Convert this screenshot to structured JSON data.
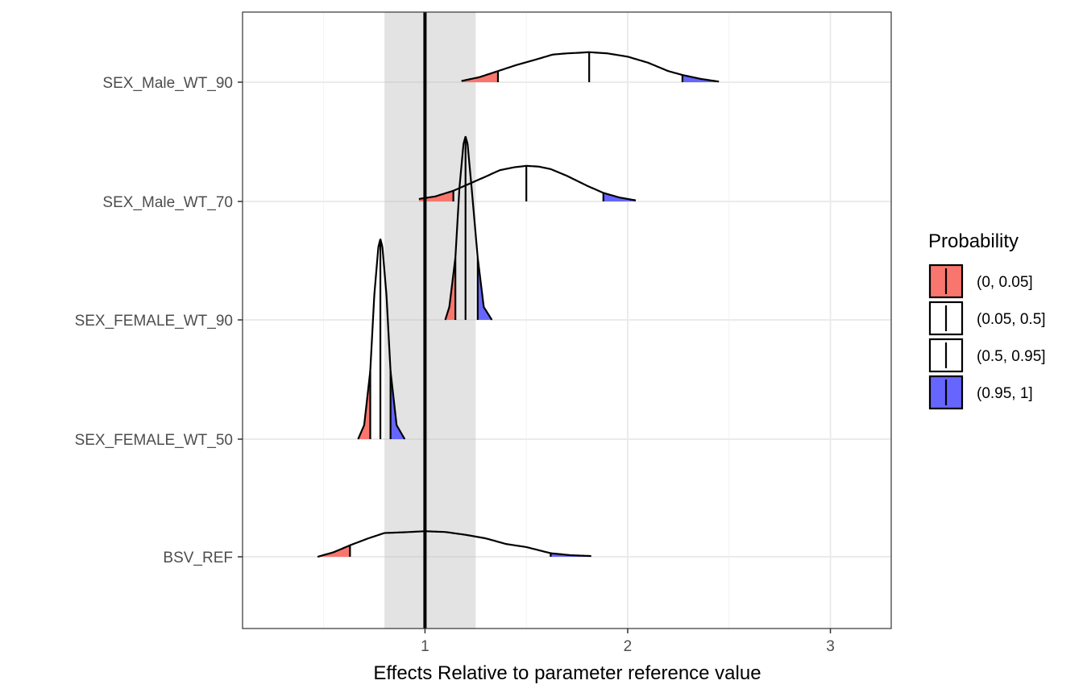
{
  "chart_data": {
    "type": "density-ridgeline",
    "xlabel": "Effects Relative to parameter reference value",
    "ylabel": "",
    "xlim": [
      0.1,
      3.3
    ],
    "x_ticks": [
      1,
      2,
      3
    ],
    "x_tick_labels": [
      "1",
      "2",
      "3"
    ],
    "reference_line": 1,
    "reference_band": [
      0.8,
      1.25
    ],
    "grid": true,
    "legend": {
      "title": "Probability",
      "position": "right",
      "entries": [
        {
          "label": "(0, 0.05]",
          "color": "#f8766d"
        },
        {
          "label": "(0.05, 0.5]",
          "color": "#ffffff"
        },
        {
          "label": "(0.5, 0.95]",
          "color": "#ffffff"
        },
        {
          "label": "(0.95, 1]",
          "color": "#6666ff"
        }
      ]
    },
    "categories": [
      "BSV_REF",
      "SEX_FEMALE_WT_50",
      "SEX_FEMALE_WT_90",
      "SEX_Male_WT_70",
      "SEX_Male_WT_90"
    ],
    "series": [
      {
        "name": "BSV_REF",
        "range": [
          0.47,
          1.82
        ],
        "quantiles": {
          "q05": 0.63,
          "median": 1.0,
          "q95": 1.62
        },
        "density_x": [
          0.47,
          0.55,
          0.63,
          0.72,
          0.8,
          0.9,
          1.0,
          1.1,
          1.2,
          1.3,
          1.4,
          1.5,
          1.62,
          1.72,
          1.82
        ],
        "density_y": [
          0.0,
          0.18,
          0.45,
          0.72,
          0.93,
          0.96,
          1.0,
          0.97,
          0.86,
          0.72,
          0.5,
          0.38,
          0.14,
          0.06,
          0.03
        ],
        "peak_height": 0.23
      },
      {
        "name": "SEX_FEMALE_WT_50",
        "range": [
          0.67,
          0.9
        ],
        "quantiles": {
          "q05": 0.73,
          "median": 0.78,
          "q95": 0.83
        },
        "density_x": [
          0.67,
          0.7,
          0.73,
          0.75,
          0.77,
          0.78,
          0.79,
          0.81,
          0.83,
          0.86,
          0.9
        ],
        "density_y": [
          0.0,
          0.07,
          0.34,
          0.72,
          0.96,
          1.0,
          0.96,
          0.72,
          0.34,
          0.07,
          0.0
        ],
        "peak_height": 1.8
      },
      {
        "name": "SEX_FEMALE_WT_90",
        "range": [
          1.1,
          1.33
        ],
        "quantiles": {
          "q05": 1.15,
          "median": 1.2,
          "q95": 1.26
        },
        "density_x": [
          1.1,
          1.12,
          1.15,
          1.17,
          1.19,
          1.2,
          1.21,
          1.23,
          1.26,
          1.29,
          1.33
        ],
        "density_y": [
          0.0,
          0.07,
          0.34,
          0.72,
          0.96,
          1.0,
          0.96,
          0.72,
          0.34,
          0.07,
          0.0
        ],
        "peak_height": 1.65
      },
      {
        "name": "SEX_Male_WT_70",
        "range": [
          0.97,
          2.04
        ],
        "quantiles": {
          "q05": 1.14,
          "median": 1.5,
          "q95": 1.88
        },
        "density_x": [
          0.97,
          1.05,
          1.14,
          1.22,
          1.3,
          1.37,
          1.44,
          1.5,
          1.56,
          1.62,
          1.7,
          1.8,
          1.88,
          1.96,
          2.04
        ],
        "density_y": [
          0.07,
          0.14,
          0.3,
          0.5,
          0.7,
          0.88,
          0.96,
          1.0,
          0.98,
          0.91,
          0.72,
          0.44,
          0.24,
          0.11,
          0.03
        ],
        "peak_height": 0.32
      },
      {
        "name": "SEX_Male_WT_90",
        "range": [
          1.18,
          2.45
        ],
        "quantiles": {
          "q05": 1.36,
          "median": 1.81,
          "q95": 2.27
        },
        "density_x": [
          1.18,
          1.27,
          1.36,
          1.45,
          1.55,
          1.63,
          1.7,
          1.76,
          1.81,
          1.9,
          2.0,
          2.1,
          2.2,
          2.27,
          2.36,
          2.45
        ],
        "density_y": [
          0.04,
          0.17,
          0.37,
          0.57,
          0.76,
          0.92,
          0.96,
          0.98,
          1.0,
          0.96,
          0.85,
          0.65,
          0.37,
          0.24,
          0.11,
          0.02
        ],
        "peak_height": 0.27
      }
    ]
  }
}
